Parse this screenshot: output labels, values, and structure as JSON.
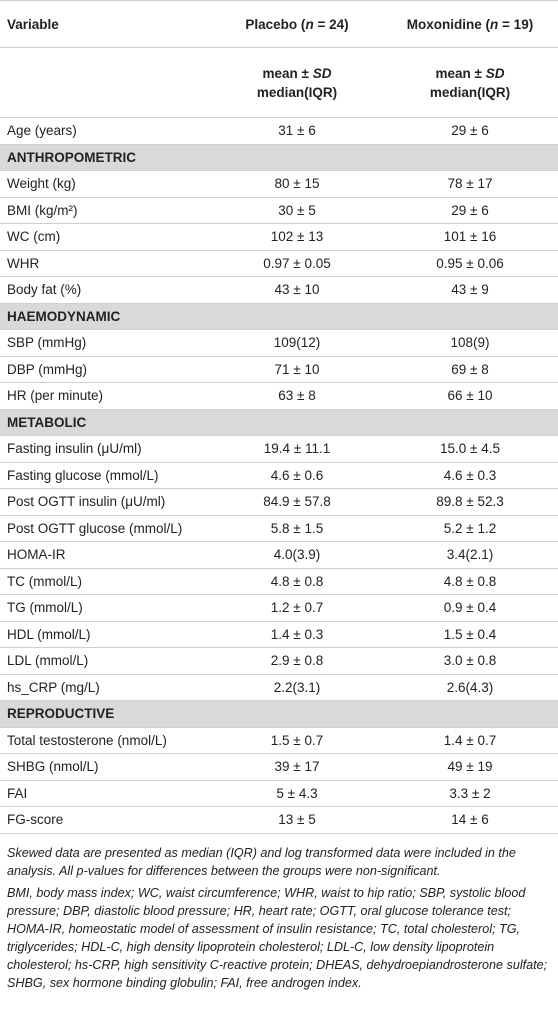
{
  "table": {
    "header": {
      "variable": "Variable",
      "placebo": [
        "Placebo (",
        "n",
        " = 24)"
      ],
      "moxonidine": [
        "Moxonidine (",
        "n",
        " = 19)"
      ]
    },
    "subheader": {
      "placebo": [
        [
          "mean ± ",
          "SD"
        ],
        "median(IQR)"
      ],
      "moxonidine": [
        [
          "mean ± ",
          "SD"
        ],
        "median(IQR)"
      ]
    },
    "rows": [
      {
        "label": "Age (years)",
        "placebo": "31 ± 6",
        "moxonidine": "29 ± 6"
      },
      {
        "section": "ANTHROPOMETRIC"
      },
      {
        "label": "Weight (kg)",
        "placebo": "80 ± 15",
        "moxonidine": "78 ± 17"
      },
      {
        "label": "BMI (kg/m²)",
        "placebo": "30 ± 5",
        "moxonidine": "29 ± 6"
      },
      {
        "label": "WC (cm)",
        "placebo": "102 ± 13",
        "moxonidine": "101 ± 16"
      },
      {
        "label": "WHR",
        "placebo": "0.97 ± 0.05",
        "moxonidine": "0.95 ± 0.06"
      },
      {
        "label": "Body fat (%)",
        "placebo": "43 ± 10",
        "moxonidine": "43 ± 9"
      },
      {
        "section": "HAEMODYNAMIC"
      },
      {
        "label": "SBP (mmHg)",
        "placebo": "109(12)",
        "moxonidine": "108(9)"
      },
      {
        "label": "DBP (mmHg)",
        "placebo": "71 ± 10",
        "moxonidine": "69 ± 8"
      },
      {
        "label": "HR (per minute)",
        "placebo": "63 ± 8",
        "moxonidine": "66 ± 10"
      },
      {
        "section": "METABOLIC"
      },
      {
        "label": "Fasting insulin (μU/ml)",
        "placebo": "19.4 ± 11.1",
        "moxonidine": "15.0 ± 4.5"
      },
      {
        "label": "Fasting glucose (mmol/L)",
        "placebo": "4.6 ± 0.6",
        "moxonidine": "4.6 ± 0.3"
      },
      {
        "label": "Post OGTT insulin (μU/ml)",
        "placebo": "84.9 ± 57.8",
        "moxonidine": "89.8 ± 52.3"
      },
      {
        "label": "Post OGTT glucose (mmol/L)",
        "placebo": "5.8 ± 1.5",
        "moxonidine": "5.2 ± 1.2"
      },
      {
        "label": "HOMA-IR",
        "placebo": "4.0(3.9)",
        "moxonidine": "3.4(2.1)"
      },
      {
        "label": "TC (mmol/L)",
        "placebo": "4.8 ± 0.8",
        "moxonidine": "4.8 ± 0.8"
      },
      {
        "label": "TG (mmol/L)",
        "placebo": "1.2 ± 0.7",
        "moxonidine": "0.9 ± 0.4"
      },
      {
        "label": "HDL (mmol/L)",
        "placebo": "1.4 ± 0.3",
        "moxonidine": "1.5 ± 0.4"
      },
      {
        "label": "LDL (mmol/L)",
        "placebo": "2.9 ± 0.8",
        "moxonidine": "3.0 ± 0.8"
      },
      {
        "label": "hs_CRP (mg/L)",
        "placebo": "2.2(3.1)",
        "moxonidine": "2.6(4.3)"
      },
      {
        "section": "REPRODUCTIVE"
      },
      {
        "label": "Total testosterone (nmol/L)",
        "placebo": "1.5 ± 0.7",
        "moxonidine": "1.4 ± 0.7"
      },
      {
        "label": "SHBG (nmol/L)",
        "placebo": "39 ± 17",
        "moxonidine": "49 ± 19"
      },
      {
        "label": "FAI",
        "placebo": "5 ± 4.3",
        "moxonidine": "3.3 ± 2"
      },
      {
        "label": "FG-score",
        "placebo": "13 ± 5",
        "moxonidine": "14 ± 6"
      }
    ]
  },
  "footnotes": [
    "Skewed data are presented as median (IQR) and log transformed data were included in the analysis. All p-values for differences between the groups were non-significant.",
    "BMI, body mass index; WC, waist circumference; WHR, waist to hip ratio; SBP, systolic blood pressure; DBP, diastolic blood pressure; HR, heart rate; OGTT, oral glucose tolerance test; HOMA-IR, homeostatic model of assessment of insulin resistance; TC, total cholesterol; TG, triglycerides; HDL-C, high density lipoprotein cholesterol; LDL-C, low density lipoprotein cholesterol; hs-CRP, high sensitivity C-reactive protein; DHEAS, dehydroepiandrosterone sulfate; SHBG, sex hormone binding globulin; FAI, free androgen index."
  ]
}
